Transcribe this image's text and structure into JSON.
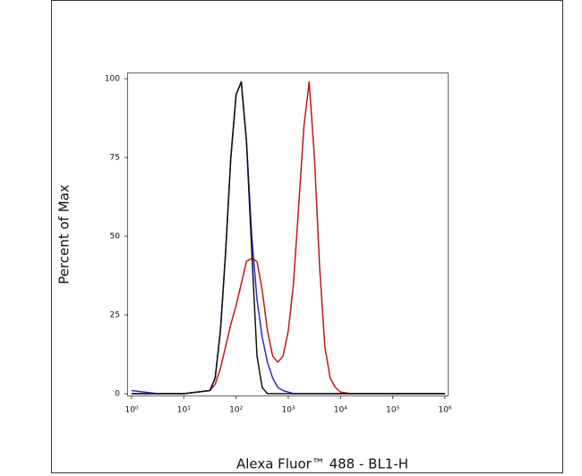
{
  "chart_data": {
    "type": "line",
    "xlabel": "Alexa Fluor™ 488 - BL1-H",
    "ylabel": "Percent of Max",
    "xscale": "log",
    "xlim": [
      1,
      1000000
    ],
    "ylim": [
      0,
      100
    ],
    "xticks": [
      {
        "value": 1,
        "label": "10⁰"
      },
      {
        "value": 10,
        "label": "10¹"
      },
      {
        "value": 100,
        "label": "10²"
      },
      {
        "value": 1000,
        "label": "10³"
      },
      {
        "value": 10000,
        "label": "10⁴"
      },
      {
        "value": 100000,
        "label": "10⁵"
      },
      {
        "value": 1000000,
        "label": "10⁶"
      }
    ],
    "yticks": [
      0,
      25,
      50,
      75,
      100
    ],
    "grid": false,
    "x": [
      1,
      3.16,
      10,
      31.6,
      39.8,
      50.1,
      63.1,
      79.4,
      100,
      126,
      158,
      200,
      251,
      316,
      398,
      501,
      631,
      794,
      1000,
      1259,
      1585,
      1995,
      2512,
      3162,
      3981,
      5012,
      6310,
      7943,
      10000,
      15849,
      31623,
      100000,
      1000000
    ],
    "series": [
      {
        "name": "blue",
        "color": "#2a2ad0",
        "values": [
          1,
          0,
          0,
          1,
          5,
          20,
          45,
          75,
          95,
          99,
          80,
          50,
          30,
          18,
          10,
          5,
          2,
          1,
          0.5,
          0,
          0,
          0,
          0,
          0,
          0,
          0,
          0,
          0,
          0,
          0,
          0,
          0,
          0
        ]
      },
      {
        "name": "red",
        "color": "#c01818",
        "values": [
          0,
          0,
          0,
          1,
          3,
          8,
          15,
          22,
          28,
          35,
          42,
          43,
          42,
          33,
          20,
          12,
          10,
          12,
          20,
          35,
          60,
          85,
          99,
          75,
          40,
          15,
          5,
          2,
          0.5,
          0,
          0,
          0,
          0
        ]
      },
      {
        "name": "black",
        "color": "#111111",
        "values": [
          0,
          0,
          0,
          1,
          5,
          20,
          45,
          75,
          95,
          99,
          80,
          45,
          12,
          2,
          0,
          0,
          0,
          0,
          0,
          0,
          0,
          0,
          0,
          0,
          0,
          0,
          0,
          0,
          0,
          0,
          0,
          0,
          0
        ]
      }
    ]
  }
}
